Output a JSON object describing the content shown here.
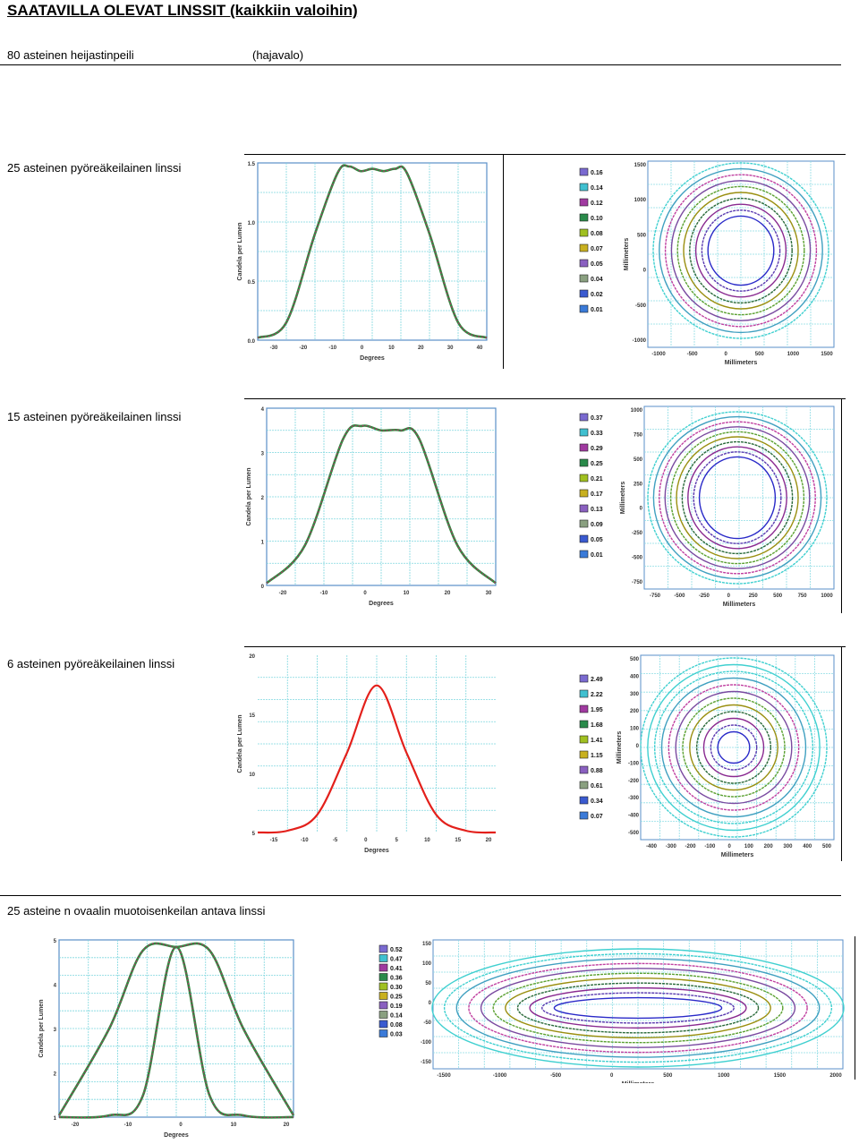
{
  "header": {
    "title": "SAATAVILLA OLEVAT LINSSIT (kaikkiin valoihin)",
    "row1_left": "80 asteinen heijastinpeili",
    "row1_right": "(hajavalo)"
  },
  "sections": [
    {
      "label": "25 asteinen pyöreäkeilainen linssi",
      "profile": {
        "yticks": [
          "1.5",
          "1.0",
          "0.5",
          "0.0"
        ],
        "xticks": [
          "-30",
          "-20",
          "-10",
          "0",
          "10",
          "20",
          "30",
          "40"
        ],
        "xlabel": "Degrees",
        "ylabel": "Candela per Lumen"
      },
      "contour": {
        "legend": [
          "0.16",
          "0.14",
          "0.12",
          "0.10",
          "0.08",
          "0.07",
          "0.05",
          "0.04",
          "0.02",
          "0.01"
        ],
        "yticks": [
          "1500",
          "1000",
          "500",
          "0",
          "-500",
          "-1000"
        ],
        "xticks": [
          "-1000",
          "-500",
          "0",
          "500",
          "1000",
          "1500"
        ],
        "xlabel": "Millimeters",
        "ylabel": "Millimeters"
      }
    },
    {
      "label": "15 asteinen pyöreäkeilainen linssi",
      "profile": {
        "yticks": [
          "4",
          "3",
          "2",
          "1",
          "0"
        ],
        "xticks": [
          "-20",
          "-10",
          "0",
          "10",
          "20",
          "30"
        ],
        "xlabel": "Degrees",
        "ylabel": "Candela per Lumen"
      },
      "contour": {
        "legend": [
          "0.37",
          "0.33",
          "0.29",
          "0.25",
          "0.21",
          "0.17",
          "0.13",
          "0.09",
          "0.05",
          "0.01"
        ],
        "yticks": [
          "1000",
          "750",
          "500",
          "250",
          "0",
          "-250",
          "-500",
          "-750"
        ],
        "xticks": [
          "-750",
          "-500",
          "-250",
          "0",
          "250",
          "500",
          "750",
          "1000"
        ],
        "xlabel": "Millimeters",
        "ylabel": "Millimeters"
      }
    },
    {
      "label": "6 asteinen pyöreäkeilainen linssi",
      "profile": {
        "yticks": [
          "20",
          "15",
          "10",
          "5"
        ],
        "xticks": [
          "-15",
          "-10",
          "-5",
          "0",
          "5",
          "10",
          "15",
          "20"
        ],
        "xlabel": "Degrees",
        "ylabel": "Candela per Lumen"
      },
      "contour": {
        "legend": [
          "2.49",
          "2.22",
          "1.95",
          "1.68",
          "1.41",
          "1.15",
          "0.88",
          "0.61",
          "0.34",
          "0.07"
        ],
        "yticks": [
          "500",
          "400",
          "300",
          "200",
          "100",
          "0",
          "-100",
          "-200",
          "-300",
          "-400",
          "-500"
        ],
        "xticks": [
          "-400",
          "-300",
          "-200",
          "-100",
          "0",
          "100",
          "200",
          "300",
          "400",
          "500"
        ],
        "xlabel": "Millimeters",
        "ylabel": "Millimeters"
      }
    },
    {
      "label": "25 asteine n ovaalin muotoisenkeilan antava linssi",
      "profile": {
        "yticks": [
          "5",
          "4",
          "3",
          "2",
          "1"
        ],
        "xticks": [
          "-20",
          "-10",
          "0",
          "10",
          "20"
        ],
        "xlabel": "Degrees",
        "ylabel": "Candela per Lumen"
      },
      "contour": {
        "legend": [
          "0.52",
          "0.47",
          "0.41",
          "0.36",
          "0.30",
          "0.25",
          "0.19",
          "0.14",
          "0.08",
          "0.03"
        ],
        "yticks": [
          "150",
          "100",
          "50",
          "0",
          "-50",
          "-100",
          "-150"
        ],
        "xticks": [
          "-1500",
          "-1000",
          "-500",
          "0",
          "500",
          "1000",
          "1500",
          "2000"
        ],
        "xlabel": "Millimeters",
        "ylabel": ""
      }
    }
  ],
  "chart_data": [
    {
      "type": "line",
      "ylabel": "Candela per Lumen",
      "xlabel": "Degrees",
      "ylim": [
        0,
        1.5
      ],
      "x": [
        -40,
        -30,
        -20,
        -12,
        -8,
        -4,
        0,
        4,
        8,
        12,
        20,
        30,
        40
      ],
      "series": [
        {
          "values": [
            0.02,
            0.15,
            0.9,
            1.42,
            1.47,
            1.43,
            1.45,
            1.43,
            1.45,
            1.42,
            0.9,
            0.15,
            0.02
          ]
        }
      ]
    },
    {
      "type": "line",
      "ylabel": "Candela per Lumen",
      "xlabel": "Degrees",
      "ylim": [
        0,
        4
      ],
      "x": [
        -30,
        -20,
        -10,
        -5,
        0,
        5,
        10,
        20,
        30
      ],
      "series": [
        {
          "values": [
            0.05,
            0.9,
            3.3,
            3.6,
            3.5,
            3.5,
            3.3,
            0.9,
            0.05
          ]
        }
      ]
    },
    {
      "type": "line",
      "ylabel": "Candela per Lumen",
      "xlabel": "Degrees",
      "ylim": [
        0,
        20
      ],
      "x": [
        -20,
        -15,
        -10,
        -5,
        0,
        5,
        10,
        15,
        20
      ],
      "series": [
        {
          "values": [
            0.0,
            0.2,
            2.0,
            9.0,
            16.6,
            9.0,
            2.0,
            0.2,
            0.0
          ]
        }
      ]
    },
    {
      "type": "line",
      "ylabel": "Candela per Lumen",
      "xlabel": "Degrees",
      "ylim": [
        0,
        5
      ],
      "x": [
        -35,
        -20,
        -10,
        0,
        10,
        20,
        35
      ],
      "series": [
        {
          "values": [
            0.05,
            2.5,
            4.7,
            4.8,
            4.7,
            2.5,
            0.05
          ]
        },
        {
          "values": [
            0,
            0.05,
            0.6,
            4.8,
            0.6,
            0.05,
            0
          ]
        }
      ]
    }
  ]
}
